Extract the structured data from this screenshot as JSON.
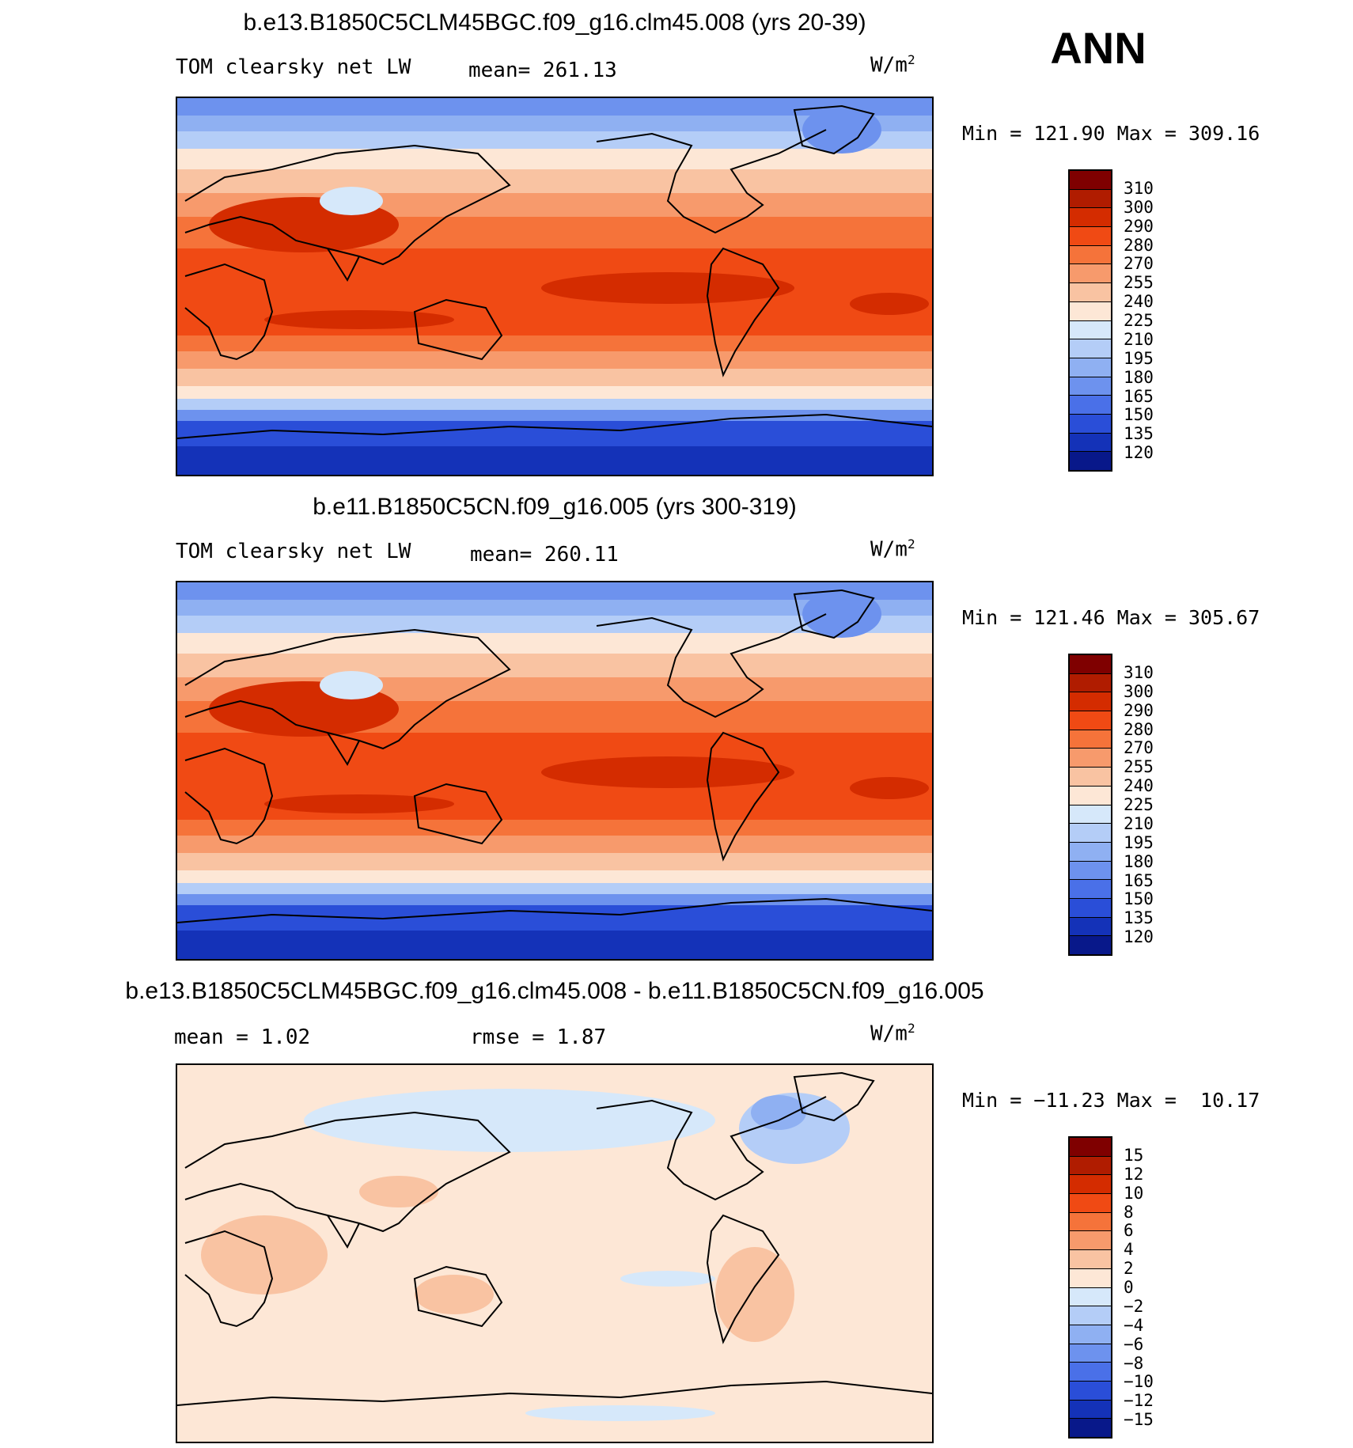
{
  "season": "ANN",
  "panels": [
    {
      "title": "b.e13.B1850C5CLM45BGC.f09_g16.clm45.008 (yrs 20-39)",
      "variable": "TOM clearsky net LW",
      "stat1": "mean= 261.13",
      "stat2": "",
      "units": "W/m",
      "units_sup": "2",
      "minmax": "Min = 121.90 Max = 309.16",
      "type": "field",
      "colorbar_labels": [
        "310",
        "300",
        "290",
        "280",
        "270",
        "255",
        "240",
        "225",
        "210",
        "195",
        "180",
        "165",
        "150",
        "135",
        "120"
      ]
    },
    {
      "title": "b.e11.B1850C5CN.f09_g16.005 (yrs 300-319)",
      "variable": "TOM clearsky net LW",
      "stat1": "mean= 260.11",
      "stat2": "",
      "units": "W/m",
      "units_sup": "2",
      "minmax": "Min = 121.46 Max = 305.67",
      "type": "field",
      "colorbar_labels": [
        "310",
        "300",
        "290",
        "280",
        "270",
        "255",
        "240",
        "225",
        "210",
        "195",
        "180",
        "165",
        "150",
        "135",
        "120"
      ]
    },
    {
      "title": "b.e13.B1850C5CLM45BGC.f09_g16.clm45.008 - b.e11.B1850C5CN.f09_g16.005",
      "variable": "mean =    1.02",
      "stat1": "rmse =    1.87",
      "stat2": "",
      "units": "W/m",
      "units_sup": "2",
      "minmax": "Min = −11.23 Max =  10.17",
      "type": "diff",
      "colorbar_labels": [
        "15",
        "12",
        "10",
        "8",
        "6",
        "4",
        "2",
        "0",
        "−2",
        "−4",
        "−6",
        "−8",
        "−10",
        "−12",
        "−15"
      ]
    }
  ],
  "colors": {
    "field_scale": [
      "#7f0000",
      "#b01c00",
      "#d42c00",
      "#f04a14",
      "#f5733a",
      "#f79a6c",
      "#f9c3a2",
      "#fde7d6",
      "#d6e8fa",
      "#b4cdf7",
      "#8fb0f2",
      "#6d92ee",
      "#4a70e8",
      "#2a4ed8",
      "#1432b8",
      "#08188a"
    ],
    "diff_scale": [
      "#7f0000",
      "#b01c00",
      "#d42c00",
      "#f04a14",
      "#f5733a",
      "#f79a6c",
      "#f9c3a2",
      "#fde7d6",
      "#d6e8fa",
      "#b4cdf7",
      "#8fb0f2",
      "#6d92ee",
      "#4a70e8",
      "#2a4ed8",
      "#1432b8",
      "#08188a"
    ]
  }
}
